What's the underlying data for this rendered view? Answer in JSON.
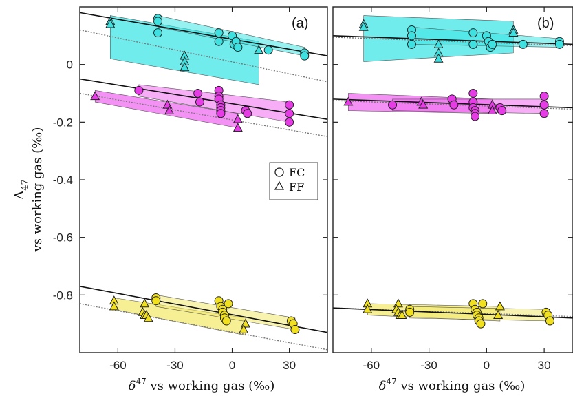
{
  "chart_data": [
    {
      "type": "scatter",
      "panel_label": "(a)",
      "xlim": [
        -80,
        50
      ],
      "ylim": [
        -1.0,
        0.2
      ],
      "xticks": [
        -60,
        -30,
        0,
        30
      ],
      "xtick_labels": [
        "-60",
        "-30",
        "0",
        "30"
      ],
      "yticks": [
        0,
        -0.2,
        -0.4,
        -0.6,
        -0.8
      ],
      "ytick_labels": [
        "0",
        "-0.2",
        "-0.4",
        "-0.6",
        "-0.8"
      ],
      "legend": {
        "position": "center-right",
        "entries": [
          {
            "marker": "circle",
            "label": "FC"
          },
          {
            "marker": "triangle",
            "label": "FF"
          }
        ]
      },
      "series": [
        {
          "group": "cyan",
          "color": "#3ee0e0",
          "band_color": "#40e6e6",
          "FC": [
            [
              -39,
              0.16
            ],
            [
              -39,
              0.15
            ],
            [
              -39,
              0.11
            ],
            [
              -7,
              0.11
            ],
            [
              -7,
              0.08
            ],
            [
              0,
              0.1
            ],
            [
              1,
              0.07
            ],
            [
              2,
              0.08
            ],
            [
              3,
              0.06
            ],
            [
              19,
              0.05
            ],
            [
              38,
              0.04
            ],
            [
              38,
              0.03
            ]
          ],
          "FF": [
            [
              -64,
              0.15
            ],
            [
              -64,
              0.14
            ],
            [
              -25,
              0.03
            ],
            [
              -25,
              0.01
            ],
            [
              -25,
              -0.01
            ],
            [
              14,
              0.05
            ]
          ],
          "fit_solid": {
            "x": [
              -80,
              50
            ],
            "y": [
              0.18,
              0.03
            ]
          },
          "fit_dotted": {
            "x": [
              -80,
              50
            ],
            "y": [
              0.12,
              -0.06
            ]
          },
          "band": [
            [
              -64,
              0.17
            ],
            [
              14,
              0.08
            ],
            [
              14,
              -0.07
            ],
            [
              -64,
              0.02
            ]
          ],
          "band2": [
            [
              -39,
              0.17
            ],
            [
              38,
              0.06
            ],
            [
              38,
              0.03
            ],
            [
              -39,
              0.13
            ]
          ]
        },
        {
          "group": "magenta",
          "color": "#e63ce6",
          "band_color": "#f06cf0",
          "FC": [
            [
              -49,
              -0.09
            ],
            [
              -18,
              -0.1
            ],
            [
              -17,
              -0.13
            ],
            [
              -7,
              -0.09
            ],
            [
              -7,
              -0.11
            ],
            [
              -7,
              -0.12
            ],
            [
              -6,
              -0.14
            ],
            [
              -6,
              -0.15
            ],
            [
              -6,
              -0.16
            ],
            [
              -6,
              -0.17
            ],
            [
              7,
              -0.16
            ],
            [
              8,
              -0.17
            ],
            [
              30,
              -0.14
            ],
            [
              30,
              -0.17
            ],
            [
              30,
              -0.2
            ]
          ],
          "FF": [
            [
              -72,
              -0.11
            ],
            [
              -34,
              -0.14
            ],
            [
              -33,
              -0.16
            ],
            [
              3,
              -0.19
            ],
            [
              3,
              -0.22
            ]
          ],
          "fit_solid": {
            "x": [
              -80,
              50
            ],
            "y": [
              -0.05,
              -0.19
            ]
          },
          "fit_dotted": {
            "x": [
              -80,
              50
            ],
            "y": [
              -0.1,
              -0.25
            ]
          },
          "band": [
            [
              -72,
              -0.09
            ],
            [
              3,
              -0.17
            ],
            [
              3,
              -0.22
            ],
            [
              -72,
              -0.13
            ]
          ],
          "band2": [
            [
              -49,
              -0.07
            ],
            [
              30,
              -0.13
            ],
            [
              30,
              -0.2
            ],
            [
              -49,
              -0.11
            ]
          ]
        },
        {
          "group": "yellow",
          "color": "#f0e020",
          "band_color": "#f4ea70",
          "FC": [
            [
              -40,
              -0.81
            ],
            [
              -40,
              -0.82
            ],
            [
              -7,
              -0.82
            ],
            [
              -6,
              -0.84
            ],
            [
              -5,
              -0.85
            ],
            [
              -5,
              -0.86
            ],
            [
              -4,
              -0.87
            ],
            [
              -4,
              -0.88
            ],
            [
              -3,
              -0.89
            ],
            [
              -2,
              -0.83
            ],
            [
              31,
              -0.89
            ],
            [
              32,
              -0.9
            ],
            [
              33,
              -0.92
            ]
          ],
          "FF": [
            [
              -62,
              -0.82
            ],
            [
              -62,
              -0.84
            ],
            [
              -46,
              -0.83
            ],
            [
              -47,
              -0.86
            ],
            [
              -46,
              -0.87
            ],
            [
              -45,
              -0.87
            ],
            [
              -44,
              -0.88
            ],
            [
              7,
              -0.9
            ],
            [
              6,
              -0.92
            ]
          ],
          "fit_solid": {
            "x": [
              -80,
              50
            ],
            "y": [
              -0.77,
              -0.93
            ]
          },
          "fit_dotted": {
            "x": [
              -80,
              50
            ],
            "y": [
              -0.83,
              -0.99
            ]
          },
          "band": [
            [
              -62,
              -0.81
            ],
            [
              7,
              -0.88
            ],
            [
              7,
              -0.94
            ],
            [
              -62,
              -0.85
            ]
          ],
          "band2": [
            [
              -40,
              -0.8
            ],
            [
              33,
              -0.88
            ],
            [
              33,
              -0.92
            ],
            [
              -40,
              -0.84
            ]
          ]
        }
      ]
    },
    {
      "type": "scatter",
      "panel_label": "(b)",
      "xlim": [
        -80,
        45
      ],
      "ylim": [
        -1.0,
        0.2
      ],
      "xticks": [
        -60,
        -30,
        0,
        30
      ],
      "xtick_labels": [
        "-60",
        "-30",
        "0",
        "30"
      ],
      "series": [
        {
          "group": "cyan",
          "color": "#3ee0e0",
          "band_color": "#40e6e6",
          "FC": [
            [
              -39,
              0.12
            ],
            [
              -39,
              0.1
            ],
            [
              -39,
              0.07
            ],
            [
              -7,
              0.11
            ],
            [
              -7,
              0.07
            ],
            [
              0,
              0.1
            ],
            [
              1,
              0.08
            ],
            [
              2,
              0.06
            ],
            [
              3,
              0.07
            ],
            [
              19,
              0.07
            ],
            [
              38,
              0.08
            ],
            [
              38,
              0.07
            ]
          ],
          "FF": [
            [
              -64,
              0.14
            ],
            [
              -64,
              0.13
            ],
            [
              -25,
              0.07
            ],
            [
              -25,
              0.04
            ],
            [
              -25,
              0.02
            ],
            [
              14,
              0.12
            ],
            [
              14,
              0.11
            ]
          ],
          "fit_solid": {
            "x": [
              -80,
              45
            ],
            "y": [
              0.1,
              0.07
            ]
          },
          "fit_dotted": {
            "x": [
              -80,
              45
            ],
            "y": [
              0.095,
              0.065
            ]
          },
          "band": [
            [
              -64,
              0.17
            ],
            [
              14,
              0.15
            ],
            [
              14,
              0.04
            ],
            [
              -64,
              0.01
            ]
          ],
          "band2": [
            [
              -39,
              0.13
            ],
            [
              38,
              0.09
            ],
            [
              38,
              0.06
            ],
            [
              -39,
              0.07
            ]
          ]
        },
        {
          "group": "magenta",
          "color": "#e63ce6",
          "band_color": "#f06cf0",
          "FC": [
            [
              -49,
              -0.14
            ],
            [
              -18,
              -0.12
            ],
            [
              -17,
              -0.14
            ],
            [
              -7,
              -0.1
            ],
            [
              -7,
              -0.13
            ],
            [
              -7,
              -0.15
            ],
            [
              -6,
              -0.16
            ],
            [
              -6,
              -0.17
            ],
            [
              -6,
              -0.18
            ],
            [
              7,
              -0.15
            ],
            [
              8,
              -0.16
            ],
            [
              30,
              -0.11
            ],
            [
              30,
              -0.14
            ],
            [
              30,
              -0.17
            ]
          ],
          "FF": [
            [
              -72,
              -0.13
            ],
            [
              -34,
              -0.13
            ],
            [
              -33,
              -0.14
            ],
            [
              3,
              -0.14
            ],
            [
              3,
              -0.16
            ]
          ],
          "fit_solid": {
            "x": [
              -80,
              45
            ],
            "y": [
              -0.12,
              -0.15
            ]
          },
          "fit_dotted": {
            "x": [
              -80,
              45
            ],
            "y": [
              -0.125,
              -0.155
            ]
          },
          "band": [
            [
              -72,
              -0.1
            ],
            [
              3,
              -0.12
            ],
            [
              3,
              -0.17
            ],
            [
              -72,
              -0.16
            ]
          ],
          "band2": [
            [
              -49,
              -0.12
            ],
            [
              30,
              -0.12
            ],
            [
              30,
              -0.17
            ],
            [
              -49,
              -0.16
            ]
          ]
        },
        {
          "group": "yellow",
          "color": "#f0e020",
          "band_color": "#f4ea70",
          "FC": [
            [
              -40,
              -0.85
            ],
            [
              -40,
              -0.86
            ],
            [
              -7,
              -0.83
            ],
            [
              -6,
              -0.85
            ],
            [
              -5,
              -0.86
            ],
            [
              -5,
              -0.87
            ],
            [
              -4,
              -0.88
            ],
            [
              -4,
              -0.89
            ],
            [
              -3,
              -0.9
            ],
            [
              -2,
              -0.83
            ],
            [
              31,
              -0.86
            ],
            [
              32,
              -0.87
            ],
            [
              33,
              -0.89
            ]
          ],
          "FF": [
            [
              -62,
              -0.83
            ],
            [
              -62,
              -0.85
            ],
            [
              -46,
              -0.83
            ],
            [
              -47,
              -0.85
            ],
            [
              -46,
              -0.86
            ],
            [
              -45,
              -0.87
            ],
            [
              -44,
              -0.87
            ],
            [
              7,
              -0.84
            ],
            [
              6,
              -0.87
            ]
          ],
          "fit_solid": {
            "x": [
              -80,
              45
            ],
            "y": [
              -0.845,
              -0.88
            ]
          },
          "fit_dotted": {
            "x": [
              -80,
              45
            ],
            "y": [
              -0.845,
              -0.875
            ]
          },
          "band": [
            [
              -62,
              -0.83
            ],
            [
              7,
              -0.84
            ],
            [
              7,
              -0.89
            ],
            [
              -62,
              -0.87
            ]
          ],
          "band2": [
            [
              -40,
              -0.84
            ],
            [
              33,
              -0.85
            ],
            [
              33,
              -0.89
            ],
            [
              -40,
              -0.88
            ]
          ]
        }
      ]
    }
  ],
  "axes_text": {
    "ylabel_main": "Δ",
    "ylabel_sub": "47",
    "ylabel_second": "vs working gas (‰)",
    "xlabel_prefix": "δ",
    "xlabel_sup": "47",
    "xlabel_rest": " vs working gas (‰)"
  }
}
